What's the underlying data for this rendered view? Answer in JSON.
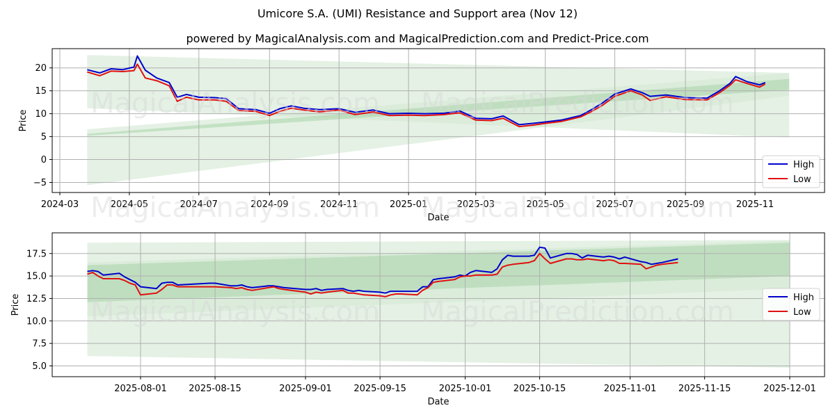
{
  "header": {
    "title": "Umicore S.A. (UMI) Resistance and Support area (Nov 12)",
    "subtitle": "powered by MagicalAnalysis.com and MagicalPrediction.com and Predict-Price.com"
  },
  "watermarks": [
    "MagicalAnalysis.com",
    "MagicalPrediction.com"
  ],
  "colors": {
    "high": "#0000cc",
    "low": "#e01010",
    "band_light": "#d6ead6",
    "band_dark": "#a8d4a8",
    "grid": "#b0b0b0"
  },
  "legend": {
    "high_label": "High",
    "low_label": "Low"
  },
  "chart_data": [
    {
      "type": "line",
      "title": "Umicore S.A. (UMI) Resistance and Support area (Nov 12)",
      "xlabel": "Date",
      "ylabel": "Price",
      "ylim": [
        -7.2,
        24.2
      ],
      "yticks": [
        -5,
        0,
        5,
        10,
        15,
        20
      ],
      "xticks": [
        "2024-03",
        "2024-05",
        "2024-07",
        "2024-09",
        "2024-11",
        "2025-01",
        "2025-03",
        "2025-05",
        "2025-07",
        "2025-09",
        "2025-11"
      ],
      "grid": true,
      "legend_position": "lower right",
      "x": [
        "2024-03-25",
        "2024-04-05",
        "2024-04-15",
        "2024-04-25",
        "2024-05-05",
        "2024-05-08",
        "2024-05-15",
        "2024-05-25",
        "2024-06-05",
        "2024-06-12",
        "2024-06-20",
        "2024-07-01",
        "2024-07-15",
        "2024-07-25",
        "2024-08-05",
        "2024-08-20",
        "2024-09-01",
        "2024-09-10",
        "2024-09-20",
        "2024-10-01",
        "2024-10-15",
        "2024-11-01",
        "2024-11-15",
        "2024-12-01",
        "2024-12-15",
        "2025-01-01",
        "2025-01-15",
        "2025-02-01",
        "2025-02-15",
        "2025-03-01",
        "2025-03-15",
        "2025-03-25",
        "2025-04-08",
        "2025-04-20",
        "2025-05-01",
        "2025-05-15",
        "2025-06-01",
        "2025-06-10",
        "2025-06-20",
        "2025-07-01",
        "2025-07-15",
        "2025-07-25",
        "2025-08-01",
        "2025-08-15",
        "2025-09-01",
        "2025-09-20",
        "2025-10-01",
        "2025-10-10",
        "2025-10-15",
        "2025-10-25",
        "2025-11-05",
        "2025-11-10"
      ],
      "series": [
        {
          "name": "High",
          "values": [
            19.6,
            18.9,
            19.8,
            19.6,
            20.2,
            22.6,
            19.5,
            17.8,
            16.8,
            13.6,
            14.2,
            13.6,
            13.5,
            13.3,
            11.1,
            10.9,
            10.1,
            11.1,
            11.7,
            11.2,
            10.9,
            11.1,
            10.3,
            10.8,
            10.0,
            10.1,
            10.0,
            10.1,
            10.6,
            9.0,
            8.9,
            9.5,
            7.6,
            7.9,
            8.2,
            8.6,
            9.6,
            10.8,
            12.3,
            14.3,
            15.4,
            14.6,
            13.8,
            14.1,
            13.5,
            13.4,
            15.0,
            16.6,
            18.1,
            17.0,
            16.3,
            16.8
          ]
        },
        {
          "name": "Low",
          "values": [
            19.1,
            18.3,
            19.3,
            19.2,
            19.4,
            20.8,
            17.8,
            17.2,
            16.1,
            12.7,
            13.6,
            13.0,
            13.0,
            12.7,
            10.7,
            10.5,
            9.6,
            10.5,
            11.2,
            10.8,
            10.4,
            10.8,
            9.8,
            10.4,
            9.6,
            9.7,
            9.6,
            9.8,
            10.2,
            8.6,
            8.5,
            9.0,
            7.2,
            7.5,
            7.9,
            8.3,
            9.3,
            10.4,
            11.8,
            13.8,
            15.0,
            14.1,
            12.9,
            13.7,
            13.1,
            13.0,
            14.6,
            16.2,
            17.4,
            16.6,
            15.8,
            16.5
          ]
        }
      ],
      "bands": [
        {
          "name": "resistance-outer",
          "start": {
            "x": "2024-03-25",
            "low": 11.2,
            "high": 22.8
          },
          "end": {
            "x": "2025-12-01",
            "low": 4.8,
            "high": 18.9
          }
        },
        {
          "name": "support-outer",
          "start": {
            "x": "2024-03-25",
            "low": -5.6,
            "high": 6.6
          },
          "end": {
            "x": "2025-12-01",
            "low": 13.9,
            "high": 18.9
          }
        },
        {
          "name": "support-core",
          "start": {
            "x": "2024-03-25",
            "low": 5.2,
            "high": 5.6
          },
          "end": {
            "x": "2025-12-01",
            "low": 15.2,
            "high": 17.6
          }
        }
      ]
    },
    {
      "type": "line",
      "title": "",
      "xlabel": "Date",
      "ylabel": "Price",
      "ylim": [
        3.8,
        19.8
      ],
      "yticks": [
        5.0,
        7.5,
        10.0,
        12.5,
        15.0,
        17.5
      ],
      "xticks": [
        "2025-08-01",
        "2025-08-15",
        "2025-09-01",
        "2025-09-15",
        "2025-10-01",
        "2025-10-15",
        "2025-11-01",
        "2025-11-15",
        "2025-12-01"
      ],
      "grid": true,
      "legend_position": "center right",
      "x": [
        "2025-07-22",
        "2025-07-23",
        "2025-07-24",
        "2025-07-25",
        "2025-07-28",
        "2025-07-29",
        "2025-07-30",
        "2025-07-31",
        "2025-08-01",
        "2025-08-04",
        "2025-08-05",
        "2025-08-06",
        "2025-08-07",
        "2025-08-08",
        "2025-08-11",
        "2025-08-14",
        "2025-08-15",
        "2025-08-18",
        "2025-08-19",
        "2025-08-20",
        "2025-08-21",
        "2025-08-22",
        "2025-08-25",
        "2025-08-26",
        "2025-08-27",
        "2025-08-28",
        "2025-09-01",
        "2025-09-02",
        "2025-09-03",
        "2025-09-04",
        "2025-09-05",
        "2025-09-08",
        "2025-09-09",
        "2025-09-10",
        "2025-09-11",
        "2025-09-12",
        "2025-09-15",
        "2025-09-16",
        "2025-09-17",
        "2025-09-18",
        "2025-09-19",
        "2025-09-22",
        "2025-09-23",
        "2025-09-24",
        "2025-09-25",
        "2025-09-26",
        "2025-09-29",
        "2025-09-30",
        "2025-10-01",
        "2025-10-02",
        "2025-10-03",
        "2025-10-06",
        "2025-10-07",
        "2025-10-08",
        "2025-10-09",
        "2025-10-10",
        "2025-10-13",
        "2025-10-14",
        "2025-10-15",
        "2025-10-16",
        "2025-10-17",
        "2025-10-20",
        "2025-10-21",
        "2025-10-22",
        "2025-10-23",
        "2025-10-24",
        "2025-10-27",
        "2025-10-28",
        "2025-10-29",
        "2025-10-30",
        "2025-10-31",
        "2025-11-03",
        "2025-11-04",
        "2025-11-05",
        "2025-11-06",
        "2025-11-07",
        "2025-11-10"
      ],
      "series": [
        {
          "name": "High",
          "values": [
            15.5,
            15.6,
            15.5,
            15.1,
            15.3,
            14.9,
            14.6,
            14.3,
            13.8,
            13.6,
            14.2,
            14.3,
            14.3,
            14.0,
            14.1,
            14.2,
            14.2,
            13.9,
            13.9,
            14.0,
            13.8,
            13.7,
            13.9,
            13.9,
            13.8,
            13.7,
            13.5,
            13.5,
            13.6,
            13.4,
            13.5,
            13.6,
            13.4,
            13.3,
            13.4,
            13.3,
            13.2,
            13.1,
            13.3,
            13.3,
            13.3,
            13.3,
            13.8,
            13.8,
            14.6,
            14.7,
            14.9,
            15.1,
            15.0,
            15.4,
            15.6,
            15.4,
            15.8,
            16.8,
            17.3,
            17.2,
            17.2,
            17.3,
            18.2,
            18.1,
            17.0,
            17.5,
            17.5,
            17.4,
            17.0,
            17.3,
            17.1,
            17.2,
            17.1,
            16.9,
            17.1,
            16.6,
            16.5,
            16.3,
            16.4,
            16.5,
            16.9
          ]
        },
        {
          "name": "Low",
          "values": [
            15.2,
            15.4,
            15.0,
            14.7,
            14.7,
            14.5,
            14.2,
            14.0,
            12.9,
            13.1,
            13.5,
            14.0,
            14.0,
            13.8,
            13.8,
            13.8,
            13.8,
            13.7,
            13.6,
            13.7,
            13.5,
            13.4,
            13.7,
            13.8,
            13.6,
            13.5,
            13.2,
            13.0,
            13.2,
            13.1,
            13.2,
            13.4,
            13.1,
            13.1,
            13.0,
            12.9,
            12.8,
            12.7,
            12.9,
            13.0,
            13.0,
            12.9,
            13.4,
            13.7,
            14.3,
            14.4,
            14.6,
            14.9,
            15.0,
            15.0,
            15.1,
            15.1,
            15.2,
            16.0,
            16.2,
            16.3,
            16.5,
            16.7,
            17.5,
            16.9,
            16.4,
            16.9,
            16.9,
            16.8,
            16.8,
            16.9,
            16.7,
            16.8,
            16.7,
            16.4,
            16.4,
            16.3,
            15.8,
            16.0,
            16.2,
            16.3,
            16.5
          ]
        }
      ],
      "bands": [
        {
          "name": "resistance-outer",
          "start": {
            "x": "2025-07-22",
            "low": 6.1,
            "high": 18.7
          },
          "end": {
            "x": "2025-12-01",
            "low": 4.8,
            "high": 19.0
          }
        },
        {
          "name": "support-outer",
          "start": {
            "x": "2025-07-22",
            "low": 10.5,
            "high": 16.5
          },
          "end": {
            "x": "2025-12-01",
            "low": 13.6,
            "high": 18.9
          }
        },
        {
          "name": "support-core",
          "start": {
            "x": "2025-07-22",
            "low": 12.1,
            "high": 16.2
          },
          "end": {
            "x": "2025-12-01",
            "low": 15.0,
            "high": 18.7
          }
        }
      ]
    }
  ]
}
